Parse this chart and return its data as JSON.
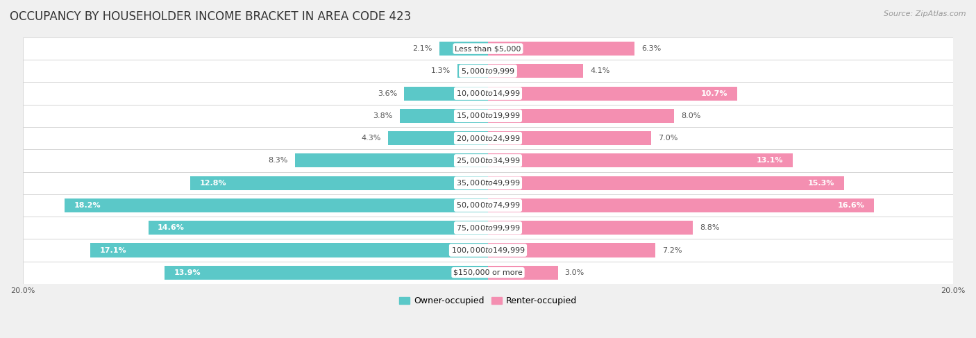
{
  "title": "OCCUPANCY BY HOUSEHOLDER INCOME BRACKET IN AREA CODE 423",
  "source": "Source: ZipAtlas.com",
  "categories": [
    "Less than $5,000",
    "$5,000 to $9,999",
    "$10,000 to $14,999",
    "$15,000 to $19,999",
    "$20,000 to $24,999",
    "$25,000 to $34,999",
    "$35,000 to $49,999",
    "$50,000 to $74,999",
    "$75,000 to $99,999",
    "$100,000 to $149,999",
    "$150,000 or more"
  ],
  "owner_values": [
    2.1,
    1.3,
    3.6,
    3.8,
    4.3,
    8.3,
    12.8,
    18.2,
    14.6,
    17.1,
    13.9
  ],
  "renter_values": [
    6.3,
    4.1,
    10.7,
    8.0,
    7.0,
    13.1,
    15.3,
    16.6,
    8.8,
    7.2,
    3.0
  ],
  "owner_color": "#5BC8C8",
  "renter_color": "#F48FB1",
  "background_color": "#f0f0f0",
  "row_bg_color": "#ffffff",
  "axis_max": 20.0,
  "bar_height": 0.62,
  "title_fontsize": 12,
  "label_fontsize": 8,
  "category_fontsize": 8,
  "legend_fontsize": 9,
  "source_fontsize": 8
}
